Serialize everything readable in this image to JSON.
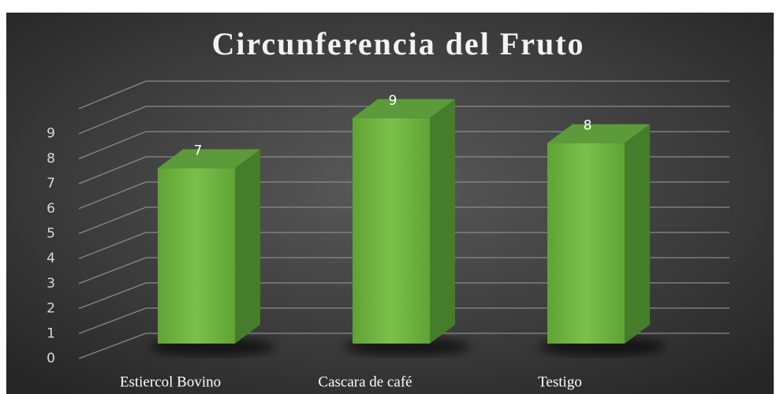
{
  "chart_data": {
    "type": "bar3d",
    "title": "Circunferencia del Fruto",
    "categories": [
      "Estiercol Bovino",
      "Cascara de café",
      "Testigo"
    ],
    "values": [
      7,
      9,
      8
    ],
    "color": "#6db33f",
    "ylim": [
      0,
      10
    ],
    "yticks": [
      0,
      1,
      2,
      3,
      4,
      5,
      6,
      7,
      8,
      9
    ],
    "grid": true
  }
}
